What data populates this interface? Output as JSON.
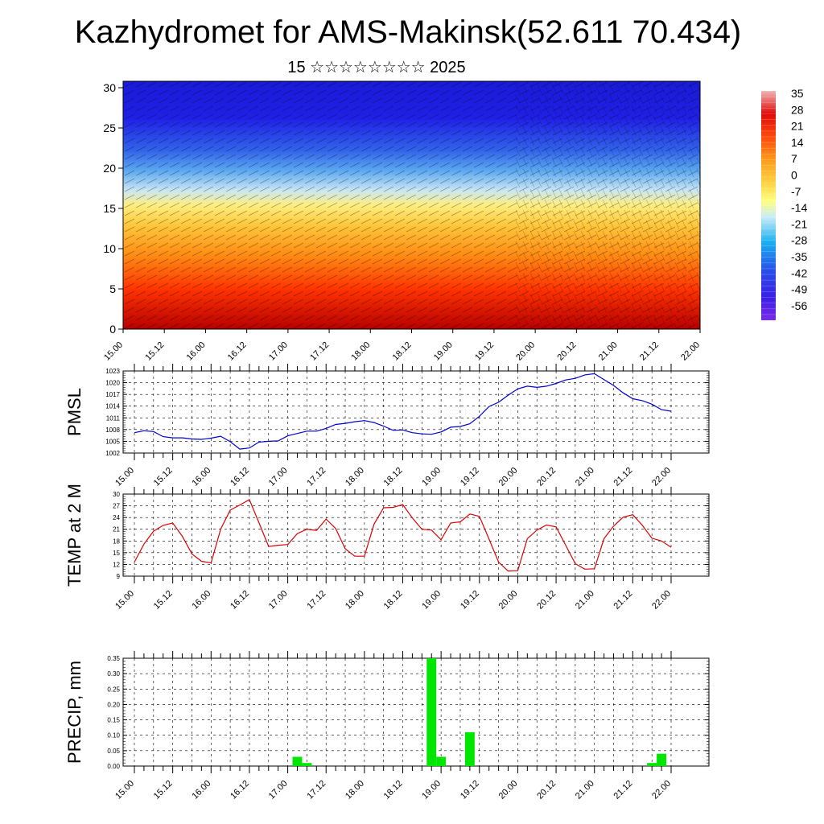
{
  "title": "Kazhydromet for AMS-Makinsk(52.611 70.434)",
  "subtitle": "15 ☆☆☆☆☆☆☆☆ 2025",
  "colors": {
    "pmsl_line": "#0000cc",
    "temp_line": "#dd0000",
    "precip_bar": "#00e600"
  },
  "chart_data": [
    {
      "type": "heatmap",
      "title": "",
      "x_tick_labels": [
        "15.00",
        "15.12",
        "16.00",
        "16.12",
        "17.00",
        "17.12",
        "18.00",
        "18.12",
        "19.00",
        "19.12",
        "20.00",
        "20.12",
        "21.00",
        "21.12",
        "22.00"
      ],
      "y_tick_labels": [
        "0",
        "5",
        "10",
        "15",
        "20",
        "25",
        "30"
      ],
      "ylim": [
        0,
        30.8
      ],
      "colorbar_labels": [
        "35",
        "28",
        "21",
        "14",
        "7",
        "0",
        "-7",
        "-14",
        "-21",
        "-28",
        "-35",
        "-42",
        "-49",
        "-56"
      ],
      "overlay": "wind vectors"
    },
    {
      "type": "line",
      "ylabel": "PMSL",
      "x_tick_labels": [
        "15.00",
        "15.12",
        "16.00",
        "16.12",
        "17.00",
        "17.12",
        "18.00",
        "18.12",
        "19.00",
        "19.12",
        "20.00",
        "20.12",
        "21.00",
        "21.12",
        "22.00"
      ],
      "y_tick_labels": [
        "1002",
        "1005",
        "1008",
        "1011",
        "1014",
        "1017",
        "1020",
        "1023"
      ],
      "ylim": [
        1002,
        1023
      ],
      "x_hours": [
        0,
        3,
        6,
        9,
        12,
        15,
        18,
        21,
        24,
        27,
        30,
        33,
        36,
        39,
        42,
        45,
        48,
        51,
        54,
        57,
        60,
        63,
        66,
        69,
        72,
        75,
        78,
        81,
        84,
        87,
        90,
        93,
        96,
        99,
        102,
        105,
        108,
        111,
        114,
        117,
        120,
        123,
        126,
        129,
        132,
        135,
        138,
        141,
        144,
        147,
        150,
        153,
        156,
        159,
        162,
        165,
        168
      ],
      "values": [
        1007.2,
        1007.7,
        1007.5,
        1006.2,
        1005.9,
        1005.9,
        1005.6,
        1005.5,
        1005.8,
        1006.3,
        1004.9,
        1003.0,
        1003.3,
        1004.8,
        1005.0,
        1005.1,
        1006.4,
        1007.0,
        1007.6,
        1007.6,
        1008.3,
        1009.3,
        1009.6,
        1010.0,
        1010.3,
        1009.8,
        1008.9,
        1007.8,
        1007.9,
        1007.2,
        1006.9,
        1006.8,
        1007.4,
        1008.6,
        1008.8,
        1009.5,
        1011.4,
        1013.9,
        1015.0,
        1016.8,
        1018.4,
        1019.1,
        1018.8,
        1019.1,
        1019.8,
        1020.7,
        1021.1,
        1022.0,
        1022.3,
        1020.8,
        1019.3,
        1017.4,
        1015.9,
        1015.4,
        1014.5,
        1013.1,
        1012.7
      ]
    },
    {
      "type": "line",
      "ylabel": "TEMP at 2 M",
      "x_tick_labels": [
        "15.00",
        "15.12",
        "16.00",
        "16.12",
        "17.00",
        "17.12",
        "18.00",
        "18.12",
        "19.00",
        "19.12",
        "20.00",
        "20.12",
        "21.00",
        "21.12",
        "22.00"
      ],
      "y_tick_labels": [
        "9",
        "12",
        "15",
        "18",
        "21",
        "24",
        "27",
        "30"
      ],
      "ylim": [
        9,
        30
      ],
      "x_hours": [
        0,
        3,
        6,
        9,
        12,
        15,
        18,
        21,
        24,
        27,
        30,
        33,
        36,
        39,
        42,
        45,
        48,
        51,
        54,
        57,
        60,
        63,
        66,
        69,
        72,
        75,
        78,
        81,
        84,
        87,
        90,
        93,
        96,
        99,
        102,
        105,
        108,
        111,
        114,
        117,
        120,
        123,
        126,
        129,
        132,
        135,
        138,
        141,
        144,
        147,
        150,
        153,
        156,
        159,
        162,
        165,
        168
      ],
      "values": [
        12.6,
        17.2,
        20.5,
        22.0,
        22.6,
        19.2,
        14.7,
        12.8,
        12.4,
        21.0,
        25.9,
        27.2,
        28.6,
        22.7,
        16.6,
        16.9,
        17.1,
        19.9,
        21.0,
        20.7,
        23.6,
        21.2,
        16.0,
        14.1,
        14.1,
        22.3,
        26.5,
        26.6,
        27.3,
        23.9,
        21.0,
        20.8,
        18.3,
        22.6,
        22.9,
        24.9,
        24.3,
        18.5,
        12.6,
        10.3,
        10.4,
        18.6,
        20.8,
        22.1,
        21.6,
        16.9,
        12.2,
        10.8,
        10.9,
        18.6,
        21.8,
        24.1,
        24.7,
        22.0,
        18.7,
        18.0,
        16.4
      ]
    },
    {
      "type": "bar",
      "ylabel": "PRECIP, mm",
      "x_tick_labels": [
        "15.00",
        "15.12",
        "16.00",
        "16.12",
        "17.00",
        "17.12",
        "18.00",
        "18.12",
        "19.00",
        "19.12",
        "20.00",
        "20.12",
        "21.00",
        "21.12",
        "22.00"
      ],
      "y_tick_labels": [
        "0.00",
        "0.05",
        "0.10",
        "0.15",
        "0.20",
        "0.25",
        "0.30",
        "0.35"
      ],
      "ylim": [
        0,
        0.35
      ],
      "x_hours": [
        51,
        54,
        93,
        96,
        105,
        162,
        165
      ],
      "values": [
        0.03,
        0.01,
        0.35,
        0.03,
        0.11,
        0.01,
        0.04
      ]
    }
  ]
}
